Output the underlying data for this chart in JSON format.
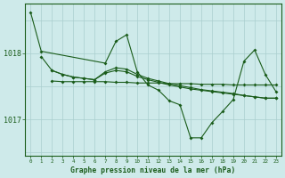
{
  "bg_color": "#ceeaea",
  "grid_color": "#aacece",
  "line_color": "#1a5c1a",
  "xlabel": "Graphe pression niveau de la mer (hPa)",
  "xlim": [
    -0.5,
    23.5
  ],
  "ylim": [
    1016.45,
    1018.75
  ],
  "yticks": [
    1017,
    1018
  ],
  "xticks": [
    0,
    1,
    2,
    3,
    4,
    5,
    6,
    7,
    8,
    9,
    10,
    11,
    12,
    13,
    14,
    15,
    16,
    17,
    18,
    19,
    20,
    21,
    22,
    23
  ],
  "y_main": [
    1018.62,
    1018.03,
    null,
    null,
    null,
    null,
    null,
    1017.85,
    1018.18,
    1018.28,
    1017.72,
    1017.52,
    1017.44,
    1017.28,
    1017.22,
    1016.72,
    1016.72,
    1016.95,
    1017.12,
    1017.3,
    1017.88,
    1018.05,
    1017.68,
    1017.42
  ],
  "y_smooth1": [
    null,
    1017.95,
    1017.74,
    1017.68,
    1017.64,
    1017.62,
    1017.6,
    1017.72,
    1017.78,
    1017.76,
    1017.68,
    1017.62,
    1017.58,
    1017.54,
    1017.51,
    1017.48,
    1017.45,
    1017.43,
    1017.41,
    1017.39,
    1017.36,
    1017.34,
    1017.32,
    1017.32
  ],
  "y_mid": [
    null,
    null,
    1017.74,
    1017.68,
    1017.64,
    1017.62,
    1017.6,
    1017.7,
    1017.74,
    1017.72,
    1017.65,
    1017.6,
    1017.56,
    1017.52,
    1017.49,
    1017.46,
    1017.44,
    1017.42,
    1017.4,
    1017.38,
    1017.36,
    1017.34,
    1017.32,
    1017.32
  ],
  "y_flat": [
    null,
    null,
    1017.58,
    1017.57,
    1017.57,
    1017.57,
    1017.57,
    1017.57,
    1017.56,
    1017.56,
    1017.55,
    1017.55,
    1017.55,
    1017.54,
    1017.54,
    1017.54,
    1017.53,
    1017.53,
    1017.53,
    1017.52,
    1017.52,
    1017.52,
    1017.52,
    1017.52
  ]
}
